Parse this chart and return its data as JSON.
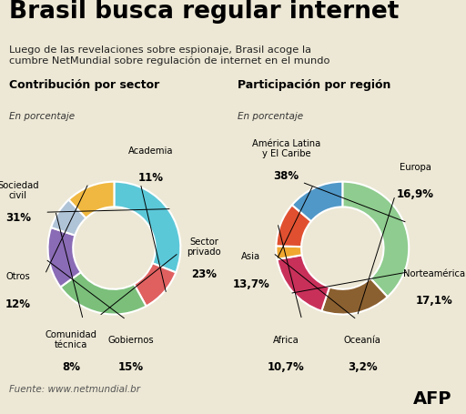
{
  "title": "Brasil busca regular internet",
  "subtitle": "Luego de las revelaciones sobre espionaje, Brasil acoge la\ncumbre NetMundial sobre regulación de internet en el mundo",
  "background_color": "#ede8d5",
  "chart1_title": "Contribución por sector",
  "chart1_subtitle": "En porcentaje",
  "chart2_title": "Participación por región",
  "chart2_subtitle": "En porcentaje",
  "sector_labels": [
    "Sociedad civil",
    "Academia",
    "Sector privado",
    "Gobiernos",
    "Comunidad técnica",
    "Otros"
  ],
  "sector_values": [
    31,
    11,
    23,
    15,
    8,
    12
  ],
  "sector_colors": [
    "#5bc8d8",
    "#e06060",
    "#7bbf7b",
    "#8a6bb5",
    "#b0c4d8",
    "#f0b840"
  ],
  "sector_pcts": [
    "31%",
    "11%",
    "23%",
    "15%",
    "8%",
    "12%"
  ],
  "region_labels": [
    "América Latina\ny El Caribe",
    "Europa",
    "Norteamérica",
    "Oceanía",
    "Africa",
    "Asia"
  ],
  "region_values": [
    38,
    16.9,
    17.1,
    3.2,
    10.7,
    13.7
  ],
  "region_colors": [
    "#8fcc8f",
    "#8b6030",
    "#c8305a",
    "#f0a830",
    "#e05030",
    "#5098c8"
  ],
  "region_pcts": [
    "38%",
    "16,9%",
    "17,1%",
    "3,2%",
    "10,7%",
    "13,7%"
  ],
  "footer": "Fuente: www.netmundial.br",
  "afp_logo": "AFP",
  "sector_label_positions": [
    {
      "label": "Sociedad\ncivil",
      "pct": "31%",
      "xt": -1.45,
      "yt": 0.75
    },
    {
      "label": "Academia",
      "pct": "11%",
      "xt": 0.55,
      "yt": 1.35
    },
    {
      "label": "Sector\nprivado",
      "pct": "23%",
      "xt": 1.35,
      "yt": -0.1
    },
    {
      "label": "Gobiernos",
      "pct": "15%",
      "xt": 0.25,
      "yt": -1.5
    },
    {
      "label": "Comunidad\ntécnica",
      "pct": "8%",
      "xt": -0.65,
      "yt": -1.5
    },
    {
      "label": "Otros",
      "pct": "12%",
      "xt": -1.45,
      "yt": -0.55
    }
  ],
  "region_label_positions": [
    {
      "label": "América Latina\ny El Caribe",
      "pct": "38%",
      "xt": -0.85,
      "yt": 1.38
    },
    {
      "label": "Europa",
      "pct": "16,9%",
      "xt": 1.1,
      "yt": 1.1
    },
    {
      "label": "Norteamérica",
      "pct": "17,1%",
      "xt": 1.38,
      "yt": -0.5
    },
    {
      "label": "Oceanía",
      "pct": "3,2%",
      "xt": 0.3,
      "yt": -1.5
    },
    {
      "label": "Africa",
      "pct": "10,7%",
      "xt": -0.85,
      "yt": -1.5
    },
    {
      "label": "Asia",
      "pct": "13,7%",
      "xt": -1.38,
      "yt": -0.25
    }
  ]
}
